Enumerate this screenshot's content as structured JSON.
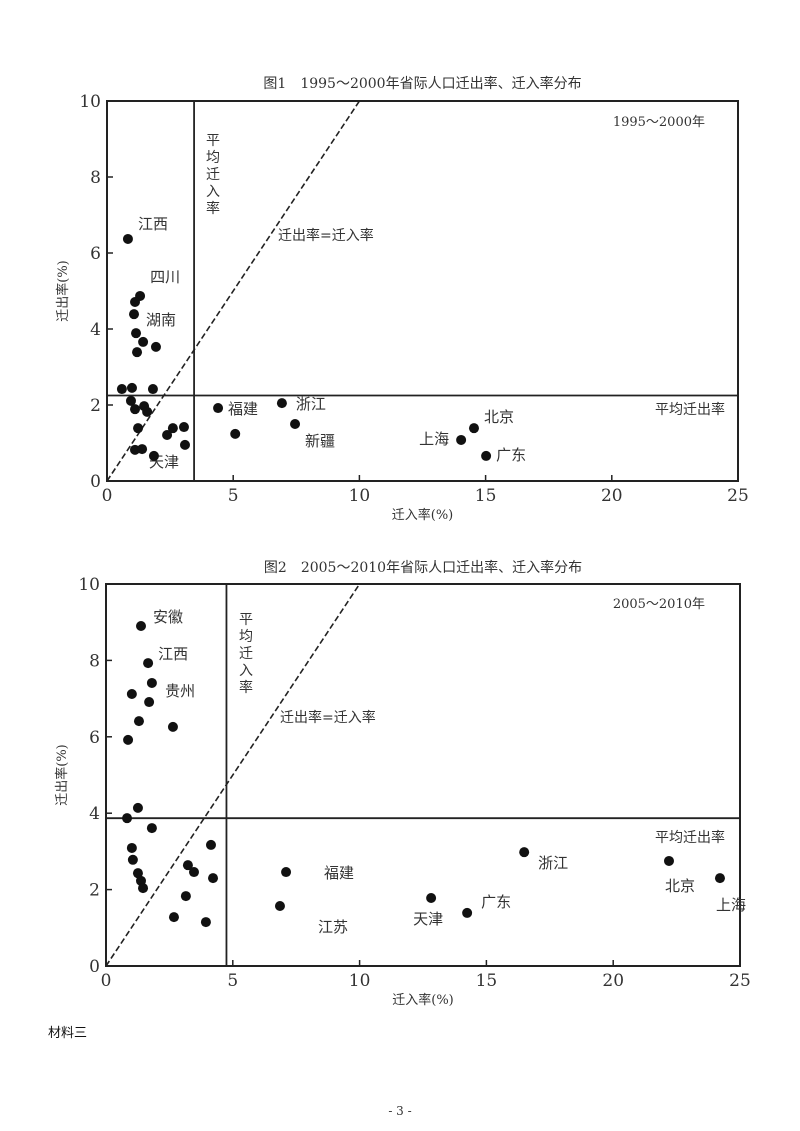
{
  "chart_data": [
    {
      "type": "scatter",
      "title": "图1　1995～2000年省际人口迁出率、迁入率分布",
      "period_label": "1995～2000年",
      "xlabel": "迁入率(%)",
      "ylabel": "迁出率(%)",
      "xlim": [
        0,
        25
      ],
      "ylim": [
        0,
        10
      ],
      "xticks": [
        0,
        5,
        10,
        15,
        20,
        25
      ],
      "yticks": [
        0,
        2,
        4,
        6,
        8,
        10
      ],
      "grid": false,
      "reference_lines": {
        "avg_in_rate": 3.45,
        "avg_in_label": "平均迁入率",
        "avg_out_rate": 2.25,
        "avg_out_label": "平均迁出率",
        "diagonal_label": "迁出率=迁入率"
      },
      "points": [
        {
          "x": 0.83,
          "y": 6.37,
          "label": "江西"
        },
        {
          "x": 1.31,
          "y": 4.87,
          "label": "四川"
        },
        {
          "x": 1.11,
          "y": 4.71
        },
        {
          "x": 1.07,
          "y": 4.39
        },
        {
          "x": 1.15,
          "y": 3.89,
          "label": "湖南"
        },
        {
          "x": 1.43,
          "y": 3.66
        },
        {
          "x": 1.94,
          "y": 3.53
        },
        {
          "x": 1.19,
          "y": 3.39
        },
        {
          "x": 0.59,
          "y": 2.42
        },
        {
          "x": 0.99,
          "y": 2.45
        },
        {
          "x": 1.82,
          "y": 2.42
        },
        {
          "x": 0.95,
          "y": 2.11
        },
        {
          "x": 1.11,
          "y": 1.89
        },
        {
          "x": 1.47,
          "y": 1.97
        },
        {
          "x": 1.59,
          "y": 1.82
        },
        {
          "x": 1.23,
          "y": 1.39
        },
        {
          "x": 2.38,
          "y": 1.21
        },
        {
          "x": 2.61,
          "y": 1.39
        },
        {
          "x": 3.05,
          "y": 1.42
        },
        {
          "x": 3.09,
          "y": 0.95,
          "label": "天津"
        },
        {
          "x": 1.11,
          "y": 0.82
        },
        {
          "x": 1.39,
          "y": 0.84
        },
        {
          "x": 1.86,
          "y": 0.66
        },
        {
          "x": 4.4,
          "y": 1.92,
          "label": "福建"
        },
        {
          "x": 5.08,
          "y": 1.24
        },
        {
          "x": 6.93,
          "y": 2.05,
          "label": "浙江"
        },
        {
          "x": 7.45,
          "y": 1.5,
          "label": "新疆"
        },
        {
          "x": 14.03,
          "y": 1.08,
          "label": "上海"
        },
        {
          "x": 14.54,
          "y": 1.39,
          "label": "北京"
        },
        {
          "x": 15.02,
          "y": 0.66,
          "label": "广东"
        }
      ]
    },
    {
      "type": "scatter",
      "title": "图2　2005～2010年省际人口迁出率、迁入率分布",
      "period_label": "2005～2010年",
      "xlabel": "迁入率(%)",
      "ylabel": "迁出率(%)",
      "xlim": [
        0,
        25
      ],
      "ylim": [
        0,
        10
      ],
      "xticks": [
        0,
        5,
        10,
        15,
        20,
        25
      ],
      "yticks": [
        0,
        2,
        4,
        6,
        8,
        10
      ],
      "grid": false,
      "reference_lines": {
        "avg_in_rate": 4.75,
        "avg_in_label": "平均迁入率",
        "avg_out_rate": 3.87,
        "avg_out_label": "平均迁出率",
        "diagonal_label": "迁出率=迁入率"
      },
      "points": [
        {
          "x": 1.38,
          "y": 8.9,
          "label": "安徽"
        },
        {
          "x": 1.66,
          "y": 7.93,
          "label": "江西"
        },
        {
          "x": 1.81,
          "y": 7.41
        },
        {
          "x": 1.02,
          "y": 7.12
        },
        {
          "x": 1.7,
          "y": 6.91,
          "label": "贵州"
        },
        {
          "x": 1.3,
          "y": 6.41
        },
        {
          "x": 2.64,
          "y": 6.26
        },
        {
          "x": 0.87,
          "y": 5.92
        },
        {
          "x": 1.26,
          "y": 4.14
        },
        {
          "x": 0.83,
          "y": 3.87
        },
        {
          "x": 1.81,
          "y": 3.61
        },
        {
          "x": 1.02,
          "y": 3.09
        },
        {
          "x": 1.06,
          "y": 2.78
        },
        {
          "x": 1.26,
          "y": 2.43
        },
        {
          "x": 1.38,
          "y": 2.23
        },
        {
          "x": 1.46,
          "y": 2.04
        },
        {
          "x": 4.14,
          "y": 3.17
        },
        {
          "x": 3.23,
          "y": 2.64
        },
        {
          "x": 3.47,
          "y": 2.46
        },
        {
          "x": 4.22,
          "y": 2.3
        },
        {
          "x": 3.15,
          "y": 1.83
        },
        {
          "x": 2.68,
          "y": 1.28
        },
        {
          "x": 3.94,
          "y": 1.15
        },
        {
          "x": 7.1,
          "y": 2.46,
          "label": "福建"
        },
        {
          "x": 6.86,
          "y": 1.57,
          "label": "江苏"
        },
        {
          "x": 12.82,
          "y": 1.78,
          "label": "天津"
        },
        {
          "x": 14.24,
          "y": 1.39,
          "label": "广东"
        },
        {
          "x": 16.49,
          "y": 2.98,
          "label": "浙江"
        },
        {
          "x": 22.2,
          "y": 2.75,
          "label": "北京"
        },
        {
          "x": 24.21,
          "y": 2.3,
          "label": "上海"
        }
      ]
    }
  ],
  "document": {
    "section_label": "材料三",
    "page_number": "- 3 -"
  }
}
